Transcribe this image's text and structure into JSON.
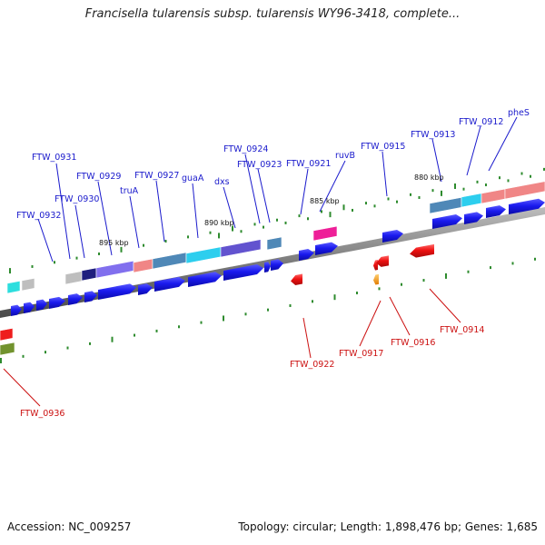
{
  "title": "Francisella tularensis subsp. tularensis WY96-3418, complete...",
  "footer": {
    "accession": "Accession: NC_009257",
    "summary": "Topology: circular; Length: 1,898,476 bp; Genes: 1,685"
  },
  "colors": {
    "forward_gene": "#1a1aee",
    "reverse_gene": "#ee1111",
    "forward_label": "#1a1acc",
    "reverse_label": "#cc1111",
    "backbone": "#777777",
    "tick": "#2e8b2e"
  },
  "kbp_marks": [
    {
      "label": "895 kbp"
    },
    {
      "label": "890 kbp"
    },
    {
      "label": "885 kbp"
    },
    {
      "label": "880 kbp"
    }
  ],
  "forward_labels": [
    {
      "text": "FTW_0932"
    },
    {
      "text": "FTW_0931"
    },
    {
      "text": "FTW_0930"
    },
    {
      "text": "FTW_0929"
    },
    {
      "text": "truA"
    },
    {
      "text": "FTW_0927"
    },
    {
      "text": "guaA"
    },
    {
      "text": "dxs"
    },
    {
      "text": "FTW_0924"
    },
    {
      "text": "FTW_0923"
    },
    {
      "text": "FTW_0921"
    },
    {
      "text": "ruvB"
    },
    {
      "text": "FTW_0915"
    },
    {
      "text": "FTW_0913"
    },
    {
      "text": "FTW_0912"
    },
    {
      "text": "pheS"
    }
  ],
  "reverse_labels": [
    {
      "text": "FTW_0936"
    },
    {
      "text": "FTW_0922"
    },
    {
      "text": "FTW_0917"
    },
    {
      "text": "FTW_0916"
    },
    {
      "text": "FTW_0914"
    }
  ]
}
